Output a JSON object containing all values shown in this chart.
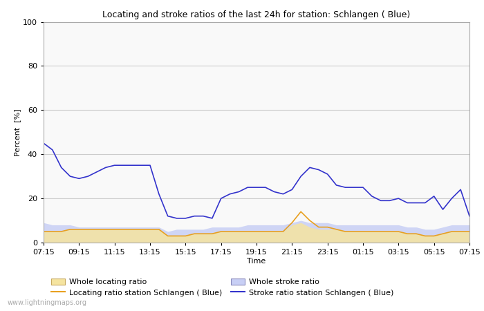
{
  "title": "Locating and stroke ratios of the last 24h for station: Schlangen ( Blue)",
  "xlabel": "Time",
  "ylabel": "Percent  [%]",
  "ylim": [
    0,
    100
  ],
  "yticks": [
    0,
    20,
    40,
    60,
    80,
    100
  ],
  "xtick_labels": [
    "07:15",
    "09:15",
    "11:15",
    "13:15",
    "15:15",
    "17:15",
    "19:15",
    "21:15",
    "23:15",
    "01:15",
    "03:15",
    "05:15",
    "07:15"
  ],
  "watermark": "www.lightningmaps.org",
  "background_color": "#ffffff",
  "plot_bg_color": "#f9f9f9",
  "grid_color": "#cccccc",
  "x": [
    0,
    1,
    2,
    3,
    4,
    5,
    6,
    7,
    8,
    9,
    10,
    11,
    12,
    13,
    14,
    15,
    16,
    17,
    18,
    19,
    20,
    21,
    22,
    23,
    24,
    25,
    26,
    27,
    28,
    29,
    30,
    31,
    32,
    33,
    34,
    35,
    36,
    37,
    38,
    39,
    40,
    41,
    42,
    43,
    44,
    45,
    46,
    47,
    48
  ],
  "whole_locating": [
    5,
    5,
    5,
    6,
    6,
    6,
    6,
    6,
    6,
    6,
    6,
    6,
    6,
    6,
    3,
    3,
    3,
    4,
    4,
    4,
    5,
    5,
    5,
    5,
    5,
    5,
    5,
    5,
    8,
    9,
    7,
    6,
    6,
    6,
    5,
    5,
    5,
    5,
    5,
    5,
    5,
    4,
    4,
    3,
    3,
    4,
    5,
    5,
    5
  ],
  "whole_stroke": [
    9,
    8,
    8,
    8,
    7,
    7,
    7,
    7,
    7,
    7,
    7,
    7,
    7,
    7,
    5,
    6,
    6,
    6,
    6,
    7,
    7,
    7,
    7,
    8,
    8,
    8,
    8,
    8,
    9,
    10,
    9,
    9,
    9,
    8,
    8,
    8,
    8,
    8,
    8,
    8,
    8,
    7,
    7,
    6,
    6,
    7,
    8,
    8,
    8
  ],
  "locating_station": [
    5,
    5,
    5,
    6,
    6,
    6,
    6,
    6,
    6,
    6,
    6,
    6,
    6,
    6,
    3,
    3,
    3,
    4,
    4,
    4,
    5,
    5,
    5,
    5,
    5,
    5,
    5,
    5,
    9,
    14,
    10,
    7,
    7,
    6,
    5,
    5,
    5,
    5,
    5,
    5,
    5,
    4,
    4,
    3,
    3,
    4,
    5,
    5,
    5
  ],
  "stroke_station": [
    45,
    42,
    34,
    30,
    29,
    30,
    32,
    34,
    35,
    35,
    35,
    35,
    35,
    22,
    12,
    11,
    11,
    12,
    12,
    11,
    20,
    22,
    23,
    25,
    25,
    25,
    23,
    22,
    24,
    30,
    34,
    33,
    31,
    26,
    25,
    25,
    25,
    21,
    19,
    19,
    20,
    18,
    18,
    18,
    21,
    15,
    20,
    24,
    12
  ],
  "whole_locating_color": "#f5e4a0",
  "whole_stroke_color": "#c8cff5",
  "locating_station_color": "#e8a020",
  "stroke_station_color": "#3333cc",
  "fill_alpha": 0.85,
  "line_width": 1.2
}
